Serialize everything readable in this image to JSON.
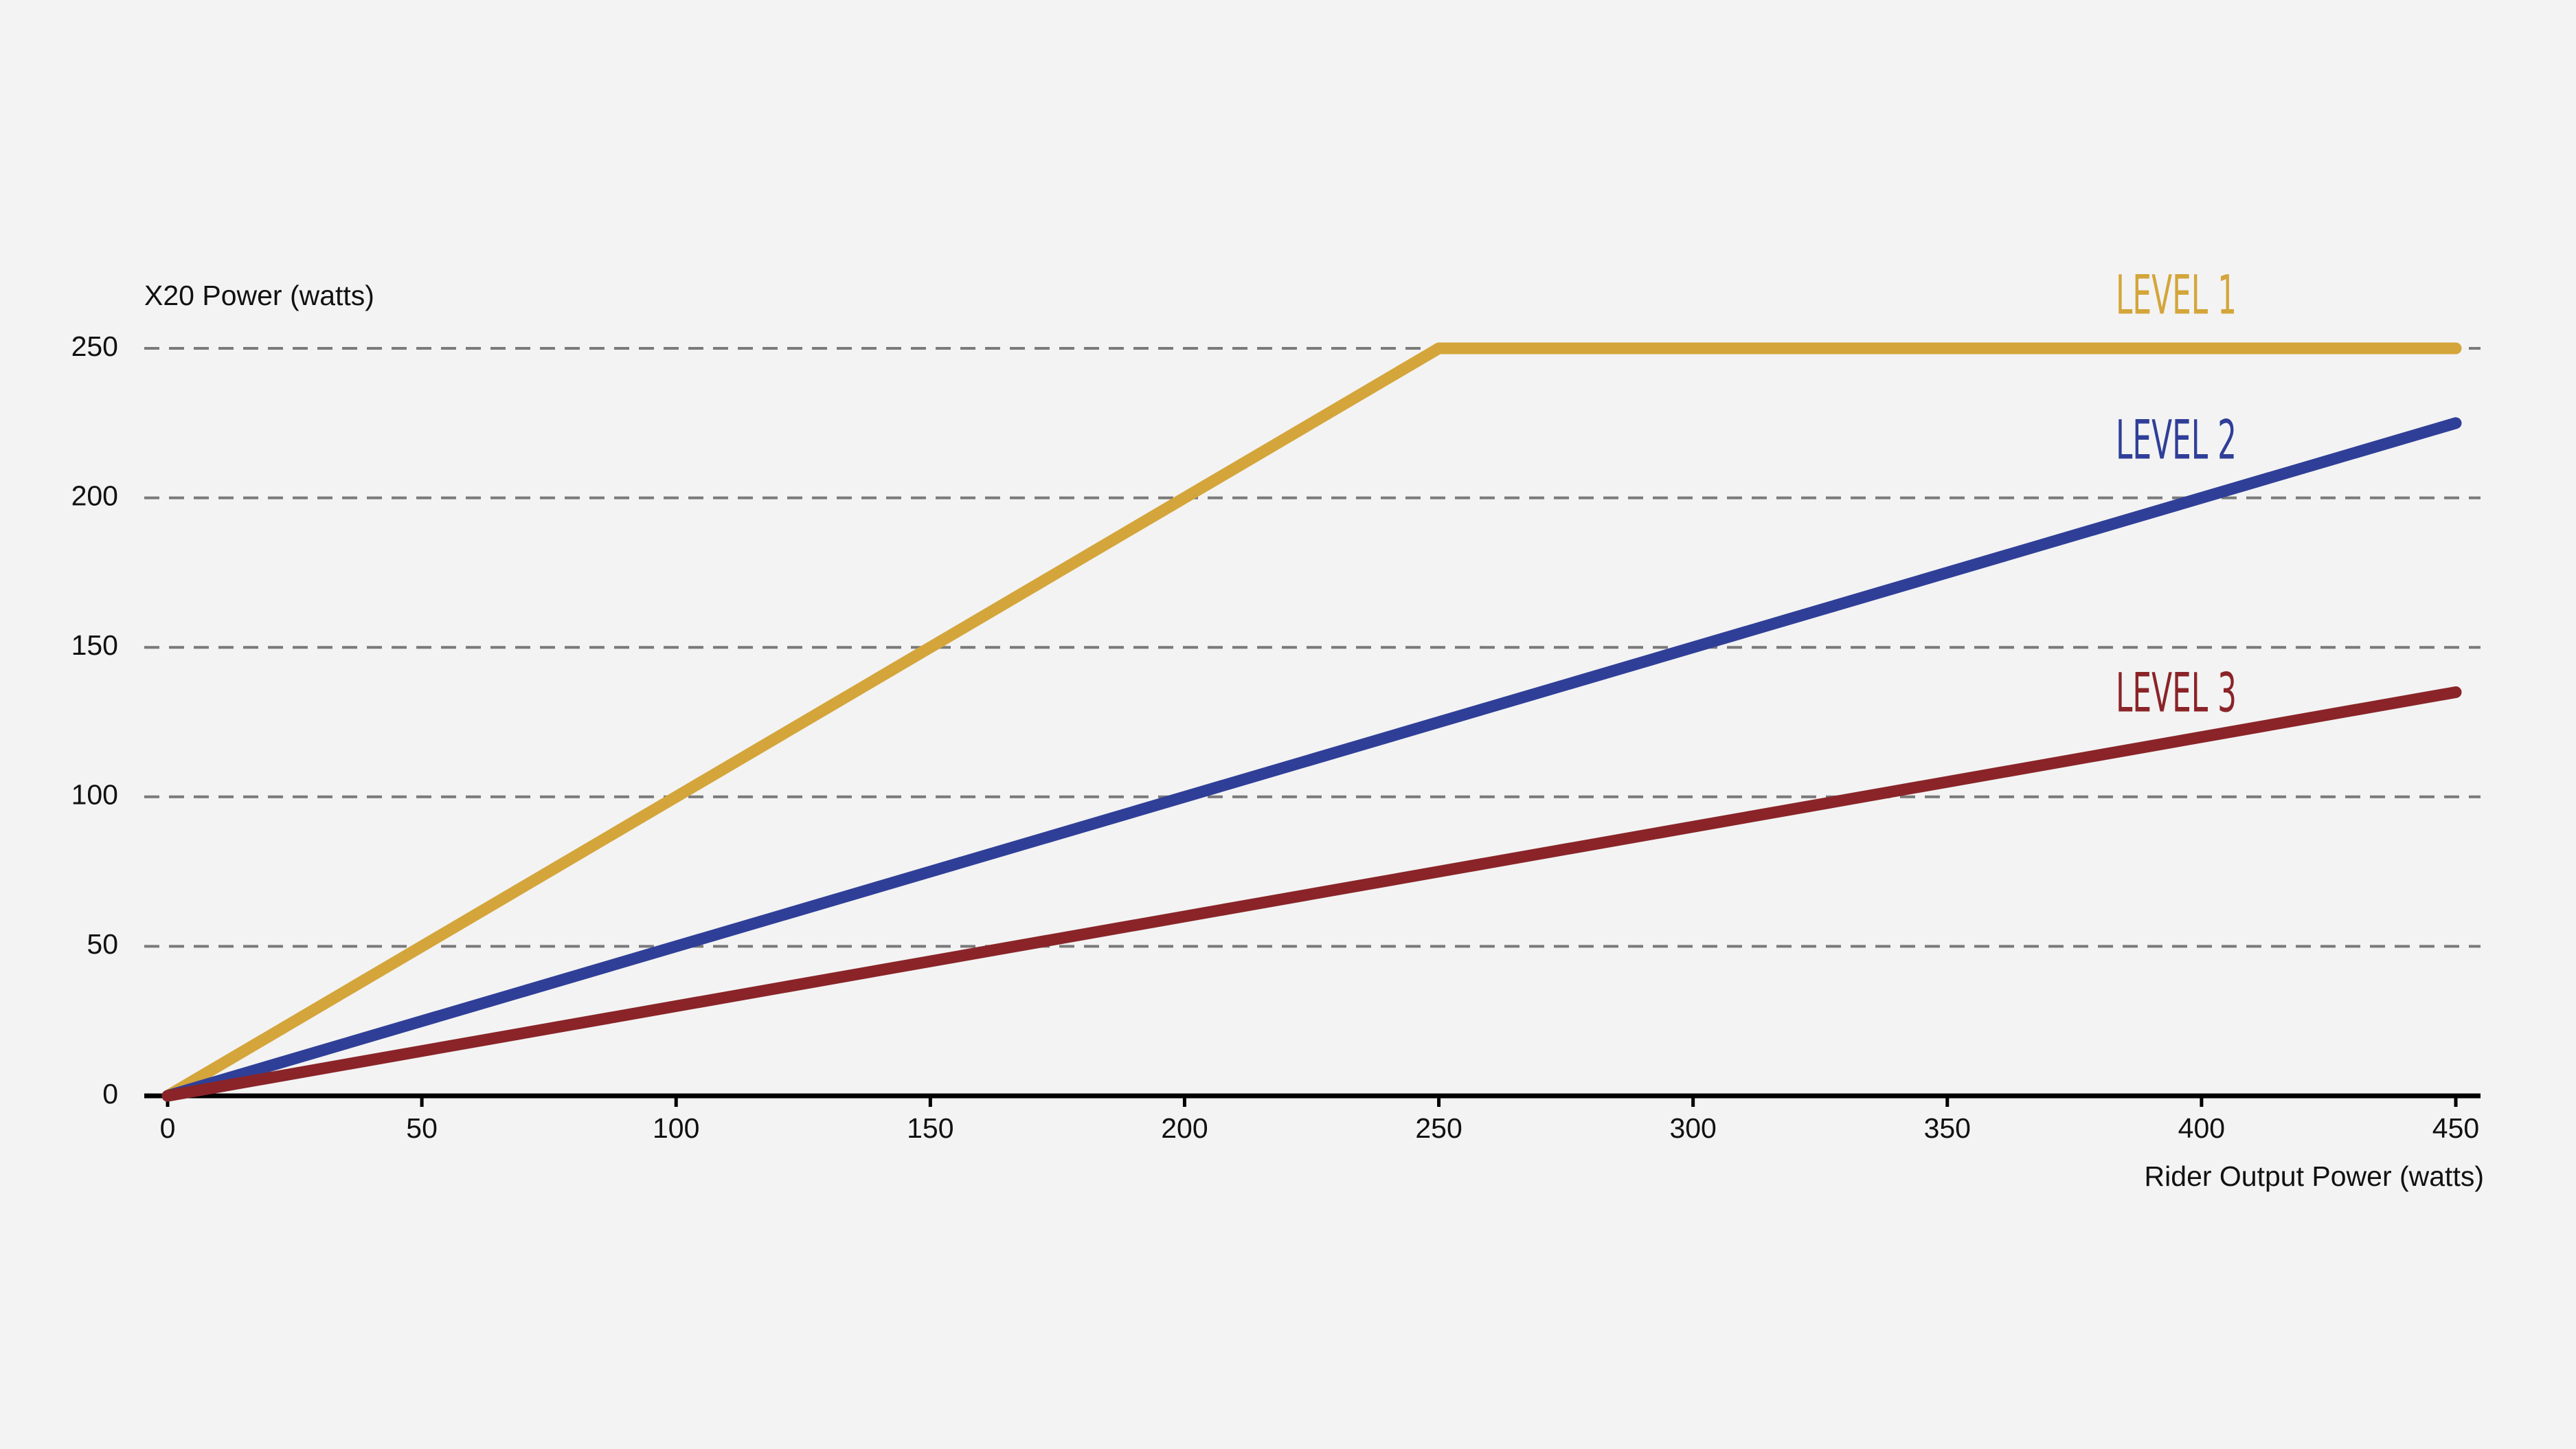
{
  "chart_data": {
    "type": "line",
    "ylabel": "X20 Power (watts)",
    "xlabel": "Rider Output Power (watts)",
    "xlim": [
      0,
      450
    ],
    "xticks": [
      0,
      50,
      100,
      150,
      200,
      250,
      300,
      350,
      400,
      450
    ],
    "ylim": [
      0,
      250
    ],
    "yticks": [
      0,
      50,
      100,
      150,
      200,
      250
    ],
    "grid": true,
    "series": [
      {
        "name": "LEVEL 1",
        "color": "#d4a53a",
        "x": [
          0,
          250,
          450
        ],
        "values": [
          0,
          250,
          250
        ]
      },
      {
        "name": "LEVEL 2",
        "color": "#2f3f98",
        "x": [
          0,
          450
        ],
        "values": [
          0,
          225
        ]
      },
      {
        "name": "LEVEL 3",
        "color": "#8a2428",
        "x": [
          0,
          450
        ],
        "values": [
          0,
          135
        ]
      }
    ]
  }
}
